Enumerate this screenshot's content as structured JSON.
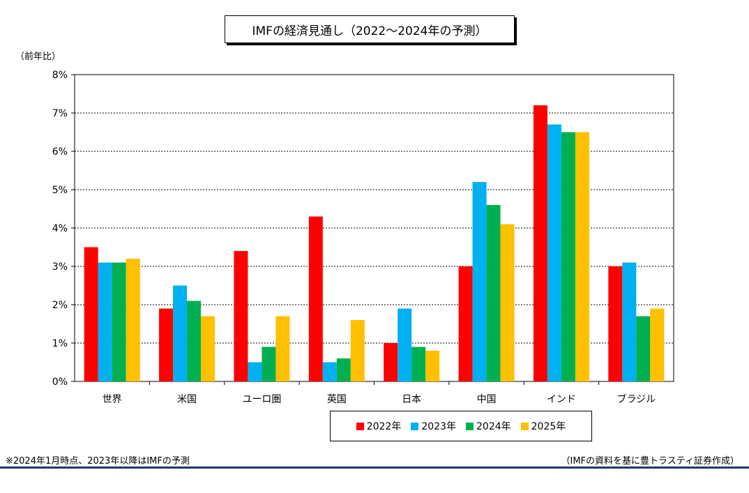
{
  "chart_data": {
    "type": "bar",
    "title": "IMFの経済見通し（2022～2024年の予測）",
    "ylabel": "（前年比）",
    "ylim": [
      0,
      8
    ],
    "yticks": [
      "0%",
      "1%",
      "2%",
      "3%",
      "4%",
      "5%",
      "6%",
      "7%",
      "8%"
    ],
    "grid": true,
    "legend_position": "bottom",
    "categories": [
      "世界",
      "米国",
      "ユーロ圏",
      "英国",
      "日本",
      "中国",
      "インド",
      "ブラジル"
    ],
    "series": [
      {
        "name": "2022年",
        "color": "#ff0000",
        "values": [
          3.5,
          1.9,
          3.4,
          4.3,
          1.0,
          3.0,
          7.2,
          3.0
        ]
      },
      {
        "name": "2023年",
        "color": "#00b0f0",
        "values": [
          3.1,
          2.5,
          0.5,
          0.5,
          1.9,
          5.2,
          6.7,
          3.1
        ]
      },
      {
        "name": "2024年",
        "color": "#00b050",
        "values": [
          3.1,
          2.1,
          0.9,
          0.6,
          0.9,
          4.6,
          6.5,
          1.7
        ]
      },
      {
        "name": "2025年",
        "color": "#ffc000",
        "values": [
          3.2,
          1.7,
          1.7,
          1.6,
          0.8,
          4.1,
          6.5,
          1.9
        ]
      }
    ]
  },
  "notes": {
    "left": "※2024年1月時点、2023年以降はIMFの予測",
    "right": "（IMFの資料を基に豊トラスティ証券作成）"
  }
}
